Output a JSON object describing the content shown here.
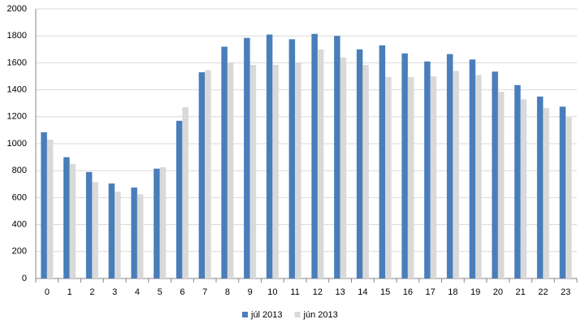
{
  "chart_data": {
    "type": "bar",
    "categories": [
      "0",
      "1",
      "2",
      "3",
      "4",
      "5",
      "6",
      "7",
      "8",
      "9",
      "10",
      "11",
      "12",
      "13",
      "14",
      "15",
      "16",
      "17",
      "18",
      "19",
      "20",
      "21",
      "22",
      "23"
    ],
    "series": [
      {
        "name": "júl 2013",
        "color": "#4a7ebb",
        "values": [
          1085,
          900,
          790,
          705,
          675,
          815,
          1170,
          1530,
          1720,
          1785,
          1810,
          1775,
          1815,
          1800,
          1700,
          1730,
          1670,
          1610,
          1665,
          1625,
          1535,
          1435,
          1350,
          1275
        ]
      },
      {
        "name": "jún 2013",
        "color": "#d9d9d9",
        "values": [
          1030,
          850,
          715,
          645,
          625,
          825,
          1270,
          1545,
          1600,
          1585,
          1585,
          1600,
          1700,
          1640,
          1585,
          1495,
          1495,
          1500,
          1540,
          1510,
          1385,
          1330,
          1265,
          1195
        ]
      }
    ],
    "ylim": [
      0,
      2000
    ],
    "yticks": [
      0,
      200,
      400,
      600,
      800,
      1000,
      1200,
      1400,
      1600,
      1800,
      2000
    ],
    "grid": true,
    "legend": "bottom"
  }
}
